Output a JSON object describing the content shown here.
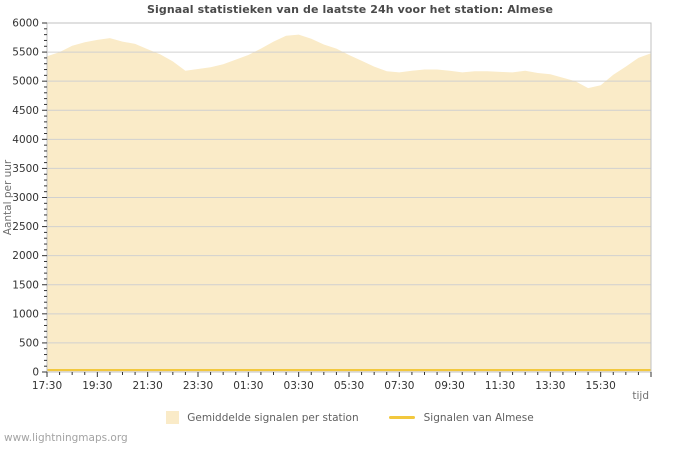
{
  "page": {
    "watermark": "www.lightningmaps.org"
  },
  "chart_data": {
    "type": "area",
    "title": "Signaal statistieken van de laatste 24h voor het station: Almese",
    "xlabel": "tijd",
    "ylabel": "Aantal per uur",
    "ylim": [
      0,
      6000
    ],
    "y_tick_step": 500,
    "y_minor_step": 100,
    "x_start": "17:30",
    "x_range_hours": 24,
    "x_tick_interval_hours": 2,
    "x_minor_interval_hours": 0.5,
    "x_tick_labels": [
      "17:30",
      "19:30",
      "21:30",
      "23:30",
      "01:30",
      "03:30",
      "05:30",
      "07:30",
      "09:30",
      "11:30",
      "13:30",
      "15:30"
    ],
    "grid": "horizontal-major-only",
    "legend_position": "bottom-center",
    "colors": {
      "area_fill": "#faebc8",
      "almese_line": "#f2c83e",
      "grid": "#d0d0d0",
      "border": "#c0c0c0",
      "tick_text": "#333333",
      "axis_title_text": "#707070",
      "title_text": "#4a4a4a",
      "watermark_text": "#a3a3a3",
      "background": "#ffffff"
    },
    "series": [
      {
        "name": "Gemiddelde signalen per station",
        "type": "area",
        "color": "#faebc8",
        "x_hours": [
          0,
          0.5,
          1,
          1.5,
          2,
          2.5,
          3,
          3.5,
          4,
          4.5,
          5,
          5.5,
          6,
          6.5,
          7,
          7.5,
          8,
          8.5,
          9,
          9.5,
          10,
          10.5,
          11,
          11.5,
          12,
          12.5,
          13,
          13.5,
          14,
          14.5,
          15,
          15.5,
          16,
          16.5,
          17,
          17.5,
          18,
          18.5,
          19,
          19.5,
          20,
          20.5,
          21,
          21.5,
          22,
          22.5,
          23,
          23.5,
          24
        ],
        "values": [
          5430,
          5500,
          5610,
          5670,
          5710,
          5740,
          5680,
          5640,
          5550,
          5460,
          5340,
          5180,
          5210,
          5240,
          5290,
          5370,
          5450,
          5560,
          5680,
          5780,
          5800,
          5730,
          5630,
          5560,
          5450,
          5350,
          5250,
          5170,
          5150,
          5180,
          5200,
          5200,
          5180,
          5150,
          5170,
          5170,
          5160,
          5150,
          5180,
          5140,
          5120,
          5060,
          5000,
          4880,
          4930,
          5110,
          5250,
          5400,
          5480
        ]
      },
      {
        "name": "Signalen van Almese",
        "type": "line",
        "color": "#f2c83e",
        "x_hours": [
          0,
          24
        ],
        "values": [
          0,
          0
        ]
      }
    ]
  }
}
